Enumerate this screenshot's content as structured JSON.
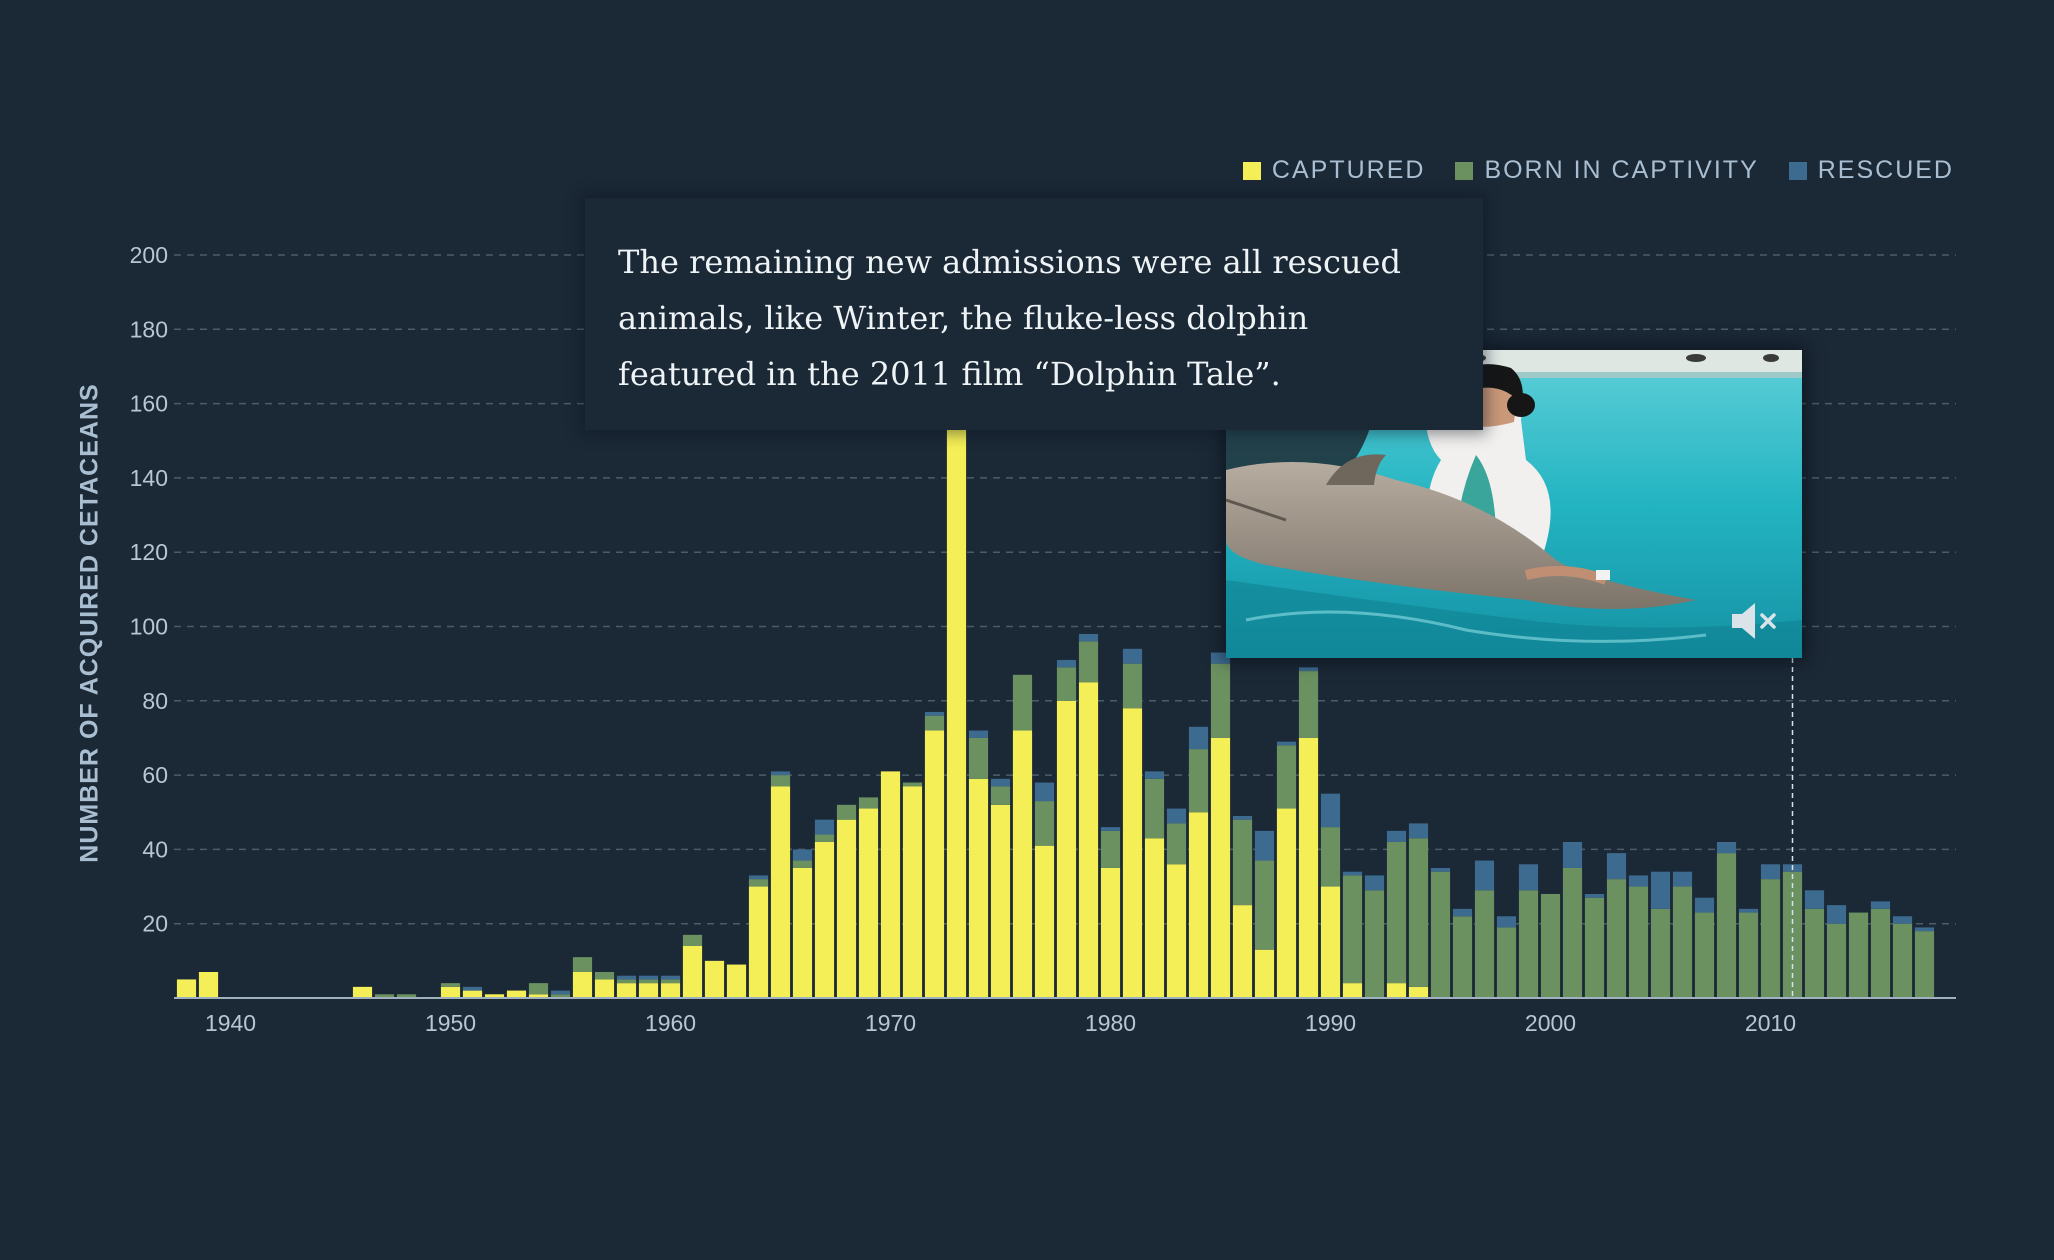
{
  "legend": {
    "captured": "CAPTURED",
    "born": "BORN IN CAPTIVITY",
    "rescued": "RESCUED"
  },
  "colors": {
    "background": "#1b2836",
    "captured": "#f5ef57",
    "born_in_captivity": "#6b9160",
    "rescued": "#3d6a8f",
    "axis_text": "#b8c6d3",
    "grid": "#4d5c6b"
  },
  "caption": {
    "text": "The remaining new admissions were all rescued animals, like Winter, the fluke-less dolphin featured in the 2011 film “Dolphin Tale”."
  },
  "video": {
    "mute_icon": "speaker-muted-icon"
  },
  "chart_data": {
    "type": "bar",
    "stacked": true,
    "ylabel": "NUMBER OF ACQUIRED CETACEANS",
    "xlabel": "",
    "ylim": [
      0,
      200
    ],
    "yticks": [
      20,
      40,
      60,
      80,
      100,
      120,
      140,
      160,
      180,
      200
    ],
    "xticks": [
      1940,
      1950,
      1960,
      1970,
      1980,
      1990,
      2000,
      2010
    ],
    "grid": true,
    "legend_position": "top-right",
    "highlight_year": 2011,
    "categories": [
      1938,
      1939,
      1940,
      1941,
      1942,
      1943,
      1944,
      1945,
      1946,
      1947,
      1948,
      1949,
      1950,
      1951,
      1952,
      1953,
      1954,
      1955,
      1956,
      1957,
      1958,
      1959,
      1960,
      1961,
      1962,
      1963,
      1964,
      1965,
      1966,
      1967,
      1968,
      1969,
      1970,
      1971,
      1972,
      1973,
      1974,
      1975,
      1976,
      1977,
      1978,
      1979,
      1980,
      1981,
      1982,
      1983,
      1984,
      1985,
      1986,
      1987,
      1988,
      1989,
      1990,
      1991,
      1992,
      1993,
      1994,
      1995,
      1996,
      1997,
      1998,
      1999,
      2000,
      2001,
      2002,
      2003,
      2004,
      2005,
      2006,
      2007,
      2008,
      2009,
      2010,
      2011,
      2012,
      2013,
      2014,
      2015,
      2016,
      2017
    ],
    "series": [
      {
        "name": "CAPTURED",
        "values": [
          5,
          7,
          0,
          0,
          0,
          0,
          0,
          0,
          3,
          0,
          0,
          0,
          3,
          2,
          1,
          2,
          1,
          0,
          7,
          5,
          4,
          4,
          4,
          14,
          10,
          9,
          30,
          57,
          35,
          42,
          48,
          51,
          61,
          57,
          72,
          160,
          59,
          52,
          72,
          41,
          80,
          85,
          35,
          78,
          43,
          36,
          50,
          70,
          25,
          13,
          51,
          70,
          30,
          4,
          0,
          4,
          3,
          0,
          0,
          0,
          0,
          0,
          0,
          0,
          0,
          0,
          0,
          0,
          0,
          0,
          0,
          0,
          0,
          0,
          0,
          0,
          0,
          0,
          0,
          0
        ]
      },
      {
        "name": "BORN IN CAPTIVITY",
        "values": [
          0,
          0,
          0,
          0,
          0,
          0,
          0,
          0,
          0,
          1,
          1,
          0,
          1,
          0,
          0,
          0,
          3,
          1,
          4,
          2,
          1,
          1,
          1,
          3,
          0,
          0,
          2,
          3,
          2,
          2,
          4,
          3,
          0,
          1,
          4,
          3,
          11,
          5,
          15,
          12,
          9,
          11,
          10,
          12,
          16,
          11,
          17,
          20,
          23,
          24,
          17,
          18,
          16,
          29,
          29,
          38,
          40,
          34,
          22,
          29,
          19,
          29,
          28,
          35,
          27,
          32,
          30,
          24,
          30,
          23,
          39,
          23,
          32,
          34,
          24,
          20,
          23,
          24,
          20,
          18
        ]
      },
      {
        "name": "RESCUED",
        "values": [
          0,
          0,
          0,
          0,
          0,
          0,
          0,
          0,
          0,
          0,
          0,
          0,
          0,
          1,
          0,
          0,
          0,
          1,
          0,
          0,
          1,
          1,
          1,
          0,
          0,
          0,
          1,
          1,
          3,
          4,
          0,
          0,
          0,
          0,
          1,
          1,
          2,
          2,
          0,
          5,
          2,
          2,
          1,
          4,
          2,
          4,
          6,
          3,
          1,
          8,
          1,
          1,
          9,
          1,
          4,
          3,
          4,
          1,
          2,
          8,
          3,
          7,
          0,
          7,
          1,
          7,
          3,
          10,
          4,
          4,
          3,
          1,
          4,
          2,
          5,
          5,
          0,
          2,
          2,
          1
        ]
      }
    ]
  }
}
